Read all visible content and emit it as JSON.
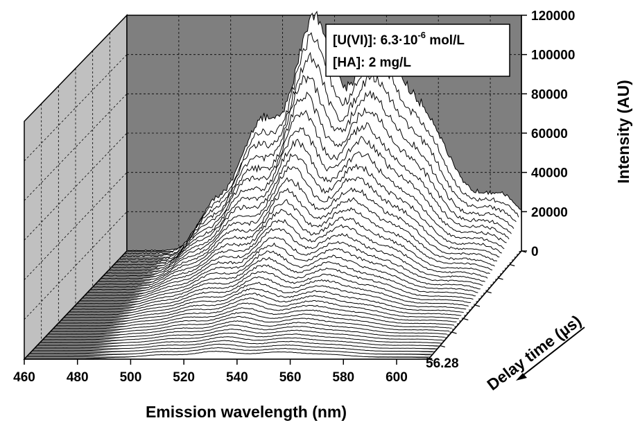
{
  "chart_data": {
    "type": "waterfall-3d",
    "title": "",
    "xlabel": "Emission wavelength (nm)",
    "ylabel": "Delay time (µs)",
    "zlabel": "Intensity (AU)",
    "x_ticks": [
      "460",
      "480",
      "500",
      "520",
      "540",
      "560",
      "580",
      "600"
    ],
    "z_ticks": [
      "0",
      "20000",
      "40000",
      "60000",
      "80000",
      "100000",
      "120000"
    ],
    "y_tick_visible": "56.28",
    "xlim": [
      460,
      612
    ],
    "zlim": [
      0,
      120000
    ],
    "legend": {
      "line1_prefix": "[U(VI)]: 6.3·10",
      "line1_exp": "-6",
      "line1_suffix": " mol/L",
      "line2": "[HA]: 2 mg/L"
    },
    "series_count": 40,
    "grid": true,
    "peaks_nm": [
      493,
      511,
      532,
      555,
      575,
      603
    ],
    "peak_max_intensity_back": 120000,
    "peak_max_intensity_front": 4000,
    "colors": {
      "back_wall": "#7f7f7f",
      "side_wall": "#c0c0c0",
      "line": "#000000",
      "fill": "#ffffff"
    }
  }
}
